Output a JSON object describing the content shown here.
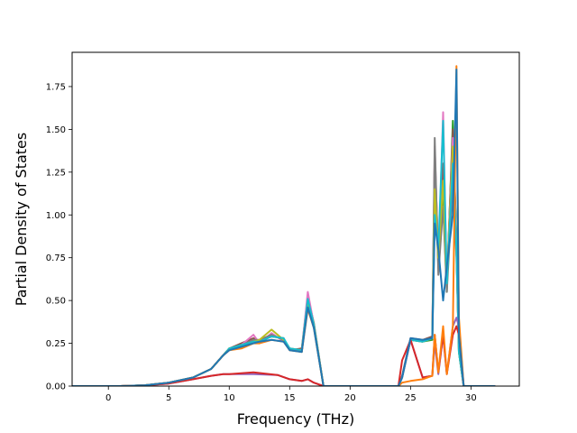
{
  "chart_data": {
    "type": "line",
    "title": "",
    "xlabel": "Frequency (THz)",
    "ylabel": "Partial Density of States",
    "xlim": [
      -3.0,
      34.0
    ],
    "ylim": [
      0.0,
      1.95
    ],
    "xticks": [
      0,
      5,
      10,
      15,
      20,
      25,
      30
    ],
    "xtick_labels": [
      "0",
      "5",
      "10",
      "15",
      "20",
      "25",
      "30"
    ],
    "yticks": [
      0.0,
      0.25,
      0.5,
      0.75,
      1.0,
      1.25,
      1.5,
      1.75
    ],
    "ytick_labels": [
      "0.00",
      "0.25",
      "0.50",
      "0.75",
      "1.00",
      "1.25",
      "1.50",
      "1.75"
    ],
    "grid": false,
    "legend": false,
    "series": [
      {
        "color": "#2ca02c",
        "values": [
          [
            -3,
            0
          ],
          [
            1,
            0
          ],
          [
            3,
            0.005
          ],
          [
            5,
            0.02
          ],
          [
            7,
            0.05
          ],
          [
            8.5,
            0.1
          ],
          [
            9.5,
            0.18
          ],
          [
            10,
            0.22
          ],
          [
            11,
            0.23
          ],
          [
            12,
            0.26
          ],
          [
            12.5,
            0.25
          ],
          [
            13.5,
            0.3
          ],
          [
            14.5,
            0.27
          ],
          [
            15,
            0.22
          ],
          [
            16,
            0.2
          ],
          [
            16.5,
            0.5
          ],
          [
            17,
            0.35
          ],
          [
            17.8,
            0
          ],
          [
            24,
            0
          ],
          [
            24.3,
            0.05
          ],
          [
            25,
            0.27
          ],
          [
            26,
            0.26
          ],
          [
            26.8,
            0.27
          ],
          [
            27,
            1.25
          ],
          [
            27.3,
            0.7
          ],
          [
            27.7,
            1.1
          ],
          [
            28,
            0.55
          ],
          [
            28.5,
            1.55
          ],
          [
            28.8,
            0.8
          ],
          [
            29,
            0.2
          ],
          [
            29.4,
            0
          ],
          [
            32,
            0
          ]
        ]
      },
      {
        "color": "#8c564b",
        "values": [
          [
            -3,
            0
          ],
          [
            1,
            0
          ],
          [
            3,
            0.005
          ],
          [
            5,
            0.02
          ],
          [
            7,
            0.05
          ],
          [
            8.5,
            0.1
          ],
          [
            9.5,
            0.18
          ],
          [
            10,
            0.22
          ],
          [
            11,
            0.25
          ],
          [
            12,
            0.28
          ],
          [
            12.5,
            0.26
          ],
          [
            13.5,
            0.29
          ],
          [
            14.5,
            0.28
          ],
          [
            15,
            0.21
          ],
          [
            16,
            0.22
          ],
          [
            16.5,
            0.52
          ],
          [
            17,
            0.37
          ],
          [
            17.8,
            0
          ],
          [
            24,
            0
          ],
          [
            24.3,
            0.06
          ],
          [
            25,
            0.28
          ],
          [
            26,
            0.27
          ],
          [
            26.8,
            0.29
          ],
          [
            27,
            1.35
          ],
          [
            27.3,
            0.75
          ],
          [
            27.7,
            1.3
          ],
          [
            28,
            0.6
          ],
          [
            28.5,
            1.5
          ],
          [
            28.8,
            0.85
          ],
          [
            29,
            0.25
          ],
          [
            29.4,
            0
          ],
          [
            32,
            0
          ]
        ]
      },
      {
        "color": "#e377c2",
        "values": [
          [
            -3,
            0
          ],
          [
            1,
            0
          ],
          [
            3,
            0.005
          ],
          [
            5,
            0.02
          ],
          [
            7,
            0.05
          ],
          [
            8.5,
            0.1
          ],
          [
            9.5,
            0.18
          ],
          [
            10,
            0.21
          ],
          [
            11,
            0.24
          ],
          [
            12,
            0.3
          ],
          [
            12.5,
            0.25
          ],
          [
            13.5,
            0.31
          ],
          [
            14.5,
            0.26
          ],
          [
            15,
            0.22
          ],
          [
            16,
            0.21
          ],
          [
            16.5,
            0.55
          ],
          [
            17,
            0.36
          ],
          [
            17.8,
            0
          ],
          [
            24,
            0
          ],
          [
            24.3,
            0.05
          ],
          [
            25,
            0.27
          ],
          [
            26,
            0.26
          ],
          [
            26.8,
            0.28
          ],
          [
            27,
            1.4
          ],
          [
            27.3,
            0.7
          ],
          [
            27.7,
            1.6
          ],
          [
            28,
            0.6
          ],
          [
            28.5,
            1.45
          ],
          [
            28.8,
            0.8
          ],
          [
            29,
            0.2
          ],
          [
            29.4,
            0
          ],
          [
            32,
            0
          ]
        ]
      },
      {
        "color": "#7f7f7f",
        "values": [
          [
            -3,
            0
          ],
          [
            1,
            0
          ],
          [
            3,
            0.005
          ],
          [
            5,
            0.02
          ],
          [
            7,
            0.05
          ],
          [
            8.5,
            0.1
          ],
          [
            9.5,
            0.18
          ],
          [
            10,
            0.22
          ],
          [
            11,
            0.24
          ],
          [
            12,
            0.27
          ],
          [
            12.5,
            0.27
          ],
          [
            13.5,
            0.3
          ],
          [
            14.5,
            0.27
          ],
          [
            15,
            0.22
          ],
          [
            16,
            0.2
          ],
          [
            16.5,
            0.5
          ],
          [
            17,
            0.35
          ],
          [
            17.8,
            0
          ],
          [
            24,
            0
          ],
          [
            24.3,
            0.05
          ],
          [
            25,
            0.27
          ],
          [
            26,
            0.26
          ],
          [
            26.8,
            0.28
          ],
          [
            27,
            1.45
          ],
          [
            27.3,
            0.65
          ],
          [
            27.7,
            1.05
          ],
          [
            28,
            0.55
          ],
          [
            28.5,
            1.2
          ],
          [
            28.8,
            0.75
          ],
          [
            29,
            0.2
          ],
          [
            29.4,
            0
          ],
          [
            32,
            0
          ]
        ]
      },
      {
        "color": "#bcbd22",
        "values": [
          [
            -3,
            0
          ],
          [
            1,
            0
          ],
          [
            3,
            0.005
          ],
          [
            5,
            0.02
          ],
          [
            7,
            0.05
          ],
          [
            8.5,
            0.1
          ],
          [
            9.5,
            0.18
          ],
          [
            10,
            0.22
          ],
          [
            11,
            0.23
          ],
          [
            12,
            0.26
          ],
          [
            12.5,
            0.27
          ],
          [
            13.5,
            0.33
          ],
          [
            14.5,
            0.27
          ],
          [
            15,
            0.22
          ],
          [
            16,
            0.21
          ],
          [
            16.5,
            0.5
          ],
          [
            17,
            0.36
          ],
          [
            17.8,
            0
          ],
          [
            24,
            0
          ],
          [
            24.3,
            0.05
          ],
          [
            25,
            0.27
          ],
          [
            26,
            0.26
          ],
          [
            26.8,
            0.28
          ],
          [
            27,
            1.15
          ],
          [
            27.3,
            0.75
          ],
          [
            27.7,
            1.2
          ],
          [
            28,
            0.6
          ],
          [
            28.5,
            1.4
          ],
          [
            28.8,
            0.8
          ],
          [
            29,
            0.2
          ],
          [
            29.4,
            0
          ],
          [
            32,
            0
          ]
        ]
      },
      {
        "color": "#17becf",
        "values": [
          [
            -3,
            0
          ],
          [
            1,
            0
          ],
          [
            3,
            0.005
          ],
          [
            5,
            0.02
          ],
          [
            7,
            0.05
          ],
          [
            8.5,
            0.1
          ],
          [
            9.5,
            0.18
          ],
          [
            10,
            0.22
          ],
          [
            11,
            0.24
          ],
          [
            12,
            0.26
          ],
          [
            12.5,
            0.26
          ],
          [
            13.5,
            0.29
          ],
          [
            14.5,
            0.28
          ],
          [
            15,
            0.22
          ],
          [
            16,
            0.21
          ],
          [
            16.5,
            0.51
          ],
          [
            17,
            0.36
          ],
          [
            17.8,
            0
          ],
          [
            24,
            0
          ],
          [
            24.3,
            0.05
          ],
          [
            25,
            0.27
          ],
          [
            26,
            0.26
          ],
          [
            26.8,
            0.28
          ],
          [
            27,
            1.0
          ],
          [
            27.3,
            0.8
          ],
          [
            27.7,
            1.55
          ],
          [
            28,
            0.6
          ],
          [
            28.5,
            1.3
          ],
          [
            28.8,
            0.8
          ],
          [
            29,
            0.2
          ],
          [
            29.4,
            0
          ],
          [
            32,
            0
          ]
        ]
      },
      {
        "color": "#9467bd",
        "values": [
          [
            -3,
            0
          ],
          [
            1,
            0
          ],
          [
            3,
            0.004
          ],
          [
            5,
            0.015
          ],
          [
            7,
            0.04
          ],
          [
            8.5,
            0.06
          ],
          [
            9.5,
            0.07
          ],
          [
            10,
            0.07
          ],
          [
            12,
            0.07
          ],
          [
            14,
            0.065
          ],
          [
            15,
            0.04
          ],
          [
            16,
            0.03
          ],
          [
            16.5,
            0.04
          ],
          [
            17,
            0.02
          ],
          [
            17.8,
            0
          ],
          [
            24,
            0
          ],
          [
            24.3,
            0.05
          ],
          [
            25,
            0.27
          ],
          [
            26,
            0.05
          ],
          [
            26.8,
            0.06
          ],
          [
            27,
            0.25
          ],
          [
            27.3,
            0.07
          ],
          [
            27.7,
            0.3
          ],
          [
            28,
            0.07
          ],
          [
            28.5,
            0.35
          ],
          [
            28.8,
            0.4
          ],
          [
            29,
            0.35
          ],
          [
            29.4,
            0
          ],
          [
            32,
            0
          ]
        ]
      },
      {
        "color": "#d62728",
        "values": [
          [
            -3,
            0
          ],
          [
            1,
            0
          ],
          [
            3,
            0.004
          ],
          [
            5,
            0.015
          ],
          [
            7,
            0.04
          ],
          [
            8.5,
            0.06
          ],
          [
            9.5,
            0.07
          ],
          [
            10,
            0.07
          ],
          [
            12,
            0.08
          ],
          [
            14,
            0.065
          ],
          [
            15,
            0.04
          ],
          [
            16,
            0.03
          ],
          [
            16.5,
            0.04
          ],
          [
            17,
            0.02
          ],
          [
            17.8,
            0
          ],
          [
            24,
            0
          ],
          [
            24.3,
            0.15
          ],
          [
            25,
            0.27
          ],
          [
            26,
            0.05
          ],
          [
            26.8,
            0.06
          ],
          [
            27,
            0.3
          ],
          [
            27.3,
            0.08
          ],
          [
            27.7,
            0.3
          ],
          [
            28,
            0.07
          ],
          [
            28.5,
            0.3
          ],
          [
            28.8,
            0.35
          ],
          [
            29,
            0.3
          ],
          [
            29.4,
            0
          ],
          [
            32,
            0
          ]
        ]
      },
      {
        "color": "#ff7f0e",
        "values": [
          [
            -3,
            0
          ],
          [
            1,
            0
          ],
          [
            3,
            0.005
          ],
          [
            5,
            0.02
          ],
          [
            7,
            0.05
          ],
          [
            8.5,
            0.1
          ],
          [
            9.5,
            0.18
          ],
          [
            10,
            0.21
          ],
          [
            11,
            0.22
          ],
          [
            12,
            0.25
          ],
          [
            12.5,
            0.25
          ],
          [
            13.5,
            0.27
          ],
          [
            14.5,
            0.26
          ],
          [
            15,
            0.21
          ],
          [
            16,
            0.2
          ],
          [
            16.5,
            0.45
          ],
          [
            17,
            0.34
          ],
          [
            17.8,
            0
          ],
          [
            24,
            0
          ],
          [
            24.3,
            0.02
          ],
          [
            25,
            0.03
          ],
          [
            26,
            0.04
          ],
          [
            26.8,
            0.06
          ],
          [
            27,
            0.3
          ],
          [
            27.3,
            0.08
          ],
          [
            27.7,
            0.35
          ],
          [
            28,
            0.07
          ],
          [
            28.5,
            0.35
          ],
          [
            28.8,
            1.87
          ],
          [
            29,
            0.4
          ],
          [
            29.4,
            0
          ],
          [
            32,
            0
          ]
        ]
      },
      {
        "color": "#1f77b4",
        "values": [
          [
            -3,
            0
          ],
          [
            1,
            0
          ],
          [
            3,
            0.005
          ],
          [
            5,
            0.02
          ],
          [
            7,
            0.05
          ],
          [
            8.5,
            0.1
          ],
          [
            9.5,
            0.18
          ],
          [
            10,
            0.21
          ],
          [
            11,
            0.23
          ],
          [
            12,
            0.25
          ],
          [
            12.5,
            0.26
          ],
          [
            13.5,
            0.27
          ],
          [
            14.5,
            0.26
          ],
          [
            15,
            0.21
          ],
          [
            16,
            0.2
          ],
          [
            16.5,
            0.46
          ],
          [
            17,
            0.34
          ],
          [
            17.8,
            0
          ],
          [
            24,
            0
          ],
          [
            24.3,
            0.05
          ],
          [
            25,
            0.28
          ],
          [
            26,
            0.27
          ],
          [
            26.8,
            0.28
          ],
          [
            27,
            0.95
          ],
          [
            27.3,
            0.8
          ],
          [
            27.7,
            0.5
          ],
          [
            28,
            0.7
          ],
          [
            28.5,
            1.0
          ],
          [
            28.8,
            1.85
          ],
          [
            29,
            0.3
          ],
          [
            29.4,
            0
          ],
          [
            32,
            0
          ]
        ]
      }
    ]
  }
}
